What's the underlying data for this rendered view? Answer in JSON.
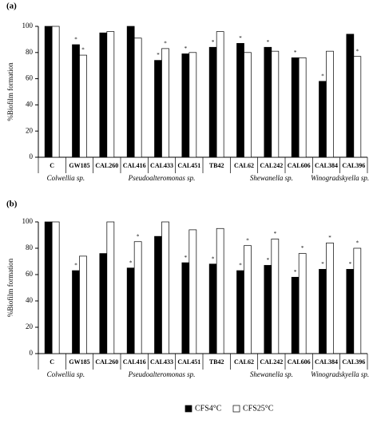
{
  "chart_data": [
    {
      "type": "bar",
      "panel": "(a)",
      "ylabel": "%Biofilm formation",
      "categories": [
        "C",
        "GW185",
        "CAL260",
        "CAL416",
        "CAL433",
        "CAL451",
        "TB42",
        "CAL62",
        "CAL242",
        "CAL606",
        "CAL384",
        "CAL396"
      ],
      "groups": [
        "Colwellia sp.",
        "Pseudoalteromonas sp.",
        "Shewanella sp.",
        "Winogradskyella sp."
      ],
      "series": [
        {
          "color": "#000000",
          "values": [
            100,
            86,
            95,
            100,
            74,
            79,
            84,
            87,
            84,
            76,
            58,
            94
          ],
          "marks": [
            null,
            "*",
            null,
            null,
            "*",
            "*",
            "*",
            "*",
            "*",
            "*",
            "*",
            null
          ]
        },
        {
          "color": "#ffffff",
          "values": [
            100,
            78,
            96,
            91,
            83,
            80,
            96,
            80,
            81,
            76,
            81,
            77
          ],
          "marks": [
            null,
            "*",
            null,
            null,
            "*",
            null,
            null,
            null,
            null,
            null,
            null,
            "*"
          ]
        }
      ],
      "ylim": [
        0,
        100
      ],
      "yticks": [
        0,
        20,
        40,
        60,
        80,
        100
      ]
    },
    {
      "type": "bar",
      "panel": "(b)",
      "ylabel": "%Biofilm formation",
      "categories": [
        "C",
        "GW185",
        "CAL260",
        "CAL416",
        "CAL433",
        "CAL451",
        "TB42",
        "CAL62",
        "CAL242",
        "CAL606",
        "CAL384",
        "CAL396"
      ],
      "groups": [
        "Colwellia sp.",
        "Pseudoalteromonas sp.",
        "Shewanella sp.",
        "Winogradskyella sp."
      ],
      "series": [
        {
          "name": "CFS4°C",
          "color": "#000000",
          "values": [
            100,
            63,
            76,
            65,
            89,
            69,
            68,
            63,
            67,
            58,
            64,
            64
          ],
          "marks": [
            null,
            "*",
            null,
            "*",
            null,
            "*",
            "*",
            "*",
            "*",
            "*",
            "*",
            "*"
          ]
        },
        {
          "name": "CFS25°C",
          "color": "#ffffff",
          "values": [
            100,
            74,
            100,
            85,
            100,
            94,
            95,
            82,
            87,
            76,
            84,
            80
          ],
          "marks": [
            null,
            null,
            null,
            "*",
            null,
            null,
            null,
            "*",
            "*",
            "*",
            "*",
            "*"
          ]
        }
      ],
      "ylim": [
        0,
        100
      ],
      "yticks": [
        0,
        20,
        40,
        60,
        80,
        100
      ]
    }
  ]
}
